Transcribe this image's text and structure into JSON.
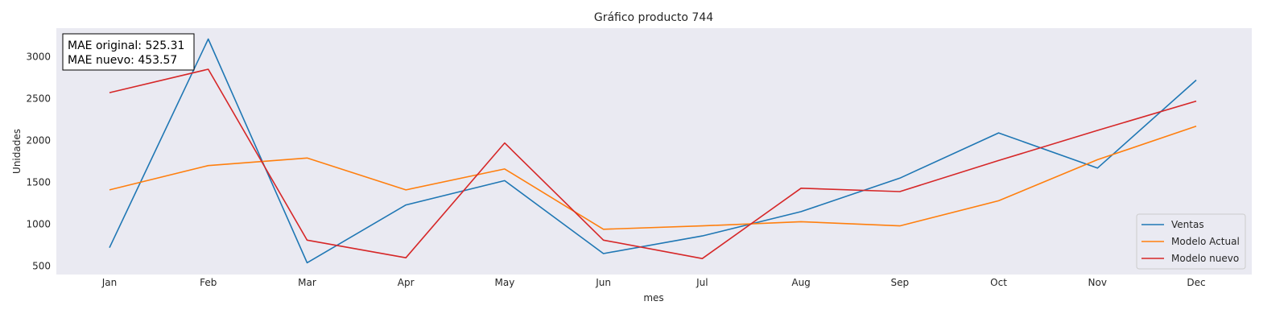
{
  "chart_data": {
    "type": "line",
    "title": "Gráfico producto 744",
    "xlabel": "mes",
    "ylabel": "Unidades",
    "categories": [
      "Jan",
      "Feb",
      "Mar",
      "Apr",
      "May",
      "Jun",
      "Jul",
      "Aug",
      "Sep",
      "Oct",
      "Nov",
      "Dec"
    ],
    "y_ticks": [
      500,
      1000,
      1500,
      2000,
      2500,
      3000
    ],
    "ylim": [
      400,
      3340
    ],
    "grid": false,
    "legend_position": "bottom-right",
    "series": [
      {
        "name": "Ventas",
        "color": "#1f77b4",
        "values": [
          720,
          3210,
          540,
          1230,
          1520,
          650,
          860,
          1150,
          1550,
          2090,
          1670,
          2720
        ]
      },
      {
        "name": "Modelo Actual",
        "color": "#ff7f0e",
        "values": [
          1410,
          1700,
          1790,
          1410,
          1660,
          940,
          980,
          1030,
          980,
          1280,
          1770,
          2170
        ]
      },
      {
        "name": "Modelo nuevo",
        "color": "#d62728",
        "values": [
          2570,
          2850,
          810,
          600,
          1970,
          810,
          590,
          1430,
          1390,
          1760,
          2120,
          2470
        ]
      }
    ],
    "annotation": {
      "line1": "MAE original: 525.31",
      "line2": "MAE nuevo: 453.57"
    }
  }
}
